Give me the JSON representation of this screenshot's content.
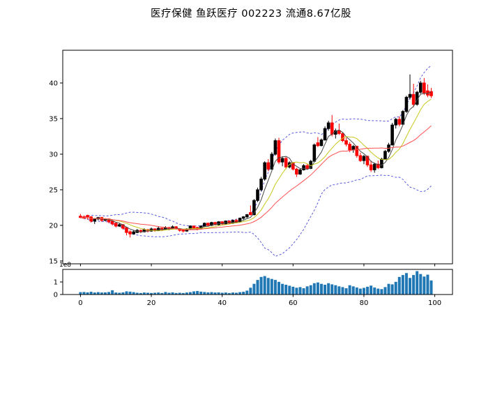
{
  "title": "医疗保健  鱼跃医疗  002223  流通8.67亿股",
  "chart_data": {
    "type": "candlestick",
    "title": "医疗保健  鱼跃医疗  002223  流通8.67亿股",
    "x_range": [
      0,
      99
    ],
    "main_axis": {
      "ylim": [
        14.6,
        44.6
      ],
      "yticks": [
        15,
        20,
        25,
        30,
        35,
        40
      ],
      "xlim": [
        -5,
        105
      ],
      "xticks": [
        0,
        20,
        40,
        60,
        80,
        100
      ],
      "grid": false,
      "legend": "none"
    },
    "volume_axis": {
      "ylim": [
        0,
        2.0
      ],
      "yticks": [
        0,
        1
      ],
      "exponent_label": "1e8",
      "xticks": [
        0,
        20,
        40,
        60,
        80,
        100
      ]
    },
    "candle_colors": {
      "up": "#000000",
      "down": "#ff0000"
    },
    "volume_color": "#1f77b4",
    "overlays": [
      {
        "name": "ma-fast",
        "type": "sma",
        "window": 5,
        "color": "#474747",
        "style": "solid"
      },
      {
        "name": "ma-mid",
        "type": "sma",
        "window": 10,
        "color": "#c8c81e",
        "style": "solid"
      },
      {
        "name": "ma-slow",
        "type": "sma",
        "window": 20,
        "color": "#ff5050",
        "style": "solid"
      },
      {
        "name": "boll-upper",
        "type": "bollinger_upper",
        "window": 20,
        "k": 2,
        "color": "#5a5ae0",
        "style": "dashed"
      },
      {
        "name": "boll-lower",
        "type": "bollinger_lower",
        "window": 20,
        "k": 2,
        "color": "#5a5ae0",
        "style": "dashed"
      }
    ],
    "ohlc": [
      [
        21.3,
        21.6,
        21.0,
        21.1
      ],
      [
        21.2,
        21.4,
        20.9,
        21.0
      ],
      [
        21.4,
        21.5,
        20.8,
        21.2
      ],
      [
        21.2,
        21.3,
        20.4,
        20.6
      ],
      [
        20.6,
        21.0,
        20.2,
        20.9
      ],
      [
        20.9,
        21.2,
        20.7,
        21.1
      ],
      [
        21.1,
        21.2,
        20.5,
        20.7
      ],
      [
        20.7,
        21.0,
        20.6,
        20.9
      ],
      [
        20.9,
        21.0,
        20.3,
        20.5
      ],
      [
        20.6,
        20.7,
        20.0,
        20.2
      ],
      [
        20.3,
        20.4,
        19.7,
        19.9
      ],
      [
        19.9,
        20.3,
        19.8,
        20.1
      ],
      [
        20.1,
        20.2,
        19.4,
        19.6
      ],
      [
        19.7,
        19.8,
        18.6,
        19.0
      ],
      [
        19.1,
        19.3,
        18.3,
        18.8
      ],
      [
        18.8,
        19.3,
        18.7,
        19.1
      ],
      [
        19.0,
        19.5,
        18.9,
        19.3
      ],
      [
        19.3,
        19.4,
        18.9,
        19.1
      ],
      [
        19.1,
        19.6,
        19.0,
        19.4
      ],
      [
        19.4,
        19.5,
        19.0,
        19.2
      ],
      [
        19.2,
        19.7,
        19.1,
        19.5
      ],
      [
        19.5,
        19.6,
        19.1,
        19.3
      ],
      [
        19.3,
        19.9,
        19.2,
        19.6
      ],
      [
        19.6,
        19.7,
        19.2,
        19.4
      ],
      [
        19.4,
        19.9,
        19.3,
        19.7
      ],
      [
        19.7,
        19.8,
        19.3,
        19.5
      ],
      [
        19.5,
        20.0,
        19.4,
        19.8
      ],
      [
        19.8,
        19.9,
        19.4,
        19.5
      ],
      [
        19.5,
        19.6,
        19.1,
        19.3
      ],
      [
        19.4,
        19.5,
        19.0,
        19.2
      ],
      [
        19.2,
        19.6,
        19.1,
        19.5
      ],
      [
        19.5,
        20.0,
        19.4,
        19.9
      ],
      [
        19.9,
        20.0,
        19.5,
        19.6
      ],
      [
        19.7,
        19.8,
        19.3,
        19.5
      ],
      [
        19.5,
        20.0,
        19.4,
        19.9
      ],
      [
        19.9,
        20.4,
        19.8,
        20.3
      ],
      [
        20.3,
        20.4,
        19.9,
        20.0
      ],
      [
        20.0,
        20.5,
        19.9,
        20.4
      ],
      [
        20.4,
        20.5,
        20.0,
        20.1
      ],
      [
        20.1,
        20.6,
        20.0,
        20.5
      ],
      [
        20.5,
        20.6,
        20.1,
        20.2
      ],
      [
        20.2,
        20.7,
        20.1,
        20.6
      ],
      [
        20.6,
        20.7,
        20.2,
        20.3
      ],
      [
        20.3,
        20.8,
        20.2,
        20.7
      ],
      [
        20.7,
        20.9,
        20.3,
        20.4
      ],
      [
        20.5,
        21.1,
        20.4,
        21.0
      ],
      [
        21.0,
        21.3,
        20.8,
        21.2
      ],
      [
        21.2,
        21.6,
        21.0,
        21.5
      ],
      [
        21.8,
        22.8,
        21.4,
        21.5
      ],
      [
        21.5,
        23.7,
        21.4,
        23.5
      ],
      [
        23.5,
        25.3,
        23.3,
        25.0
      ],
      [
        25.0,
        26.8,
        24.8,
        26.5
      ],
      [
        26.5,
        29.0,
        26.3,
        28.8
      ],
      [
        28.8,
        29.3,
        27.6,
        27.9
      ],
      [
        27.9,
        30.3,
        27.8,
        30.0
      ],
      [
        30.0,
        32.2,
        29.8,
        31.9
      ],
      [
        31.9,
        32.3,
        28.6,
        28.9
      ],
      [
        28.9,
        29.7,
        28.3,
        29.4
      ],
      [
        29.4,
        29.6,
        27.9,
        28.2
      ],
      [
        28.2,
        29.0,
        28.0,
        28.8
      ],
      [
        28.8,
        28.9,
        27.7,
        27.9
      ],
      [
        27.9,
        28.1,
        26.8,
        27.2
      ],
      [
        27.2,
        28.0,
        27.1,
        27.8
      ],
      [
        27.8,
        28.6,
        27.7,
        28.4
      ],
      [
        28.4,
        28.6,
        27.8,
        28.0
      ],
      [
        28.0,
        29.2,
        27.9,
        29.0
      ],
      [
        29.0,
        31.5,
        28.9,
        31.3
      ],
      [
        31.6,
        32.4,
        31.0,
        31.2
      ],
      [
        31.2,
        32.2,
        31.1,
        32.0
      ],
      [
        32.0,
        33.9,
        31.9,
        33.6
      ],
      [
        33.6,
        34.7,
        33.3,
        34.4
      ],
      [
        34.4,
        35.5,
        32.5,
        32.8
      ],
      [
        32.8,
        33.6,
        32.2,
        33.3
      ],
      [
        33.3,
        34.3,
        32.7,
        32.9
      ],
      [
        32.9,
        33.1,
        31.7,
        31.9
      ],
      [
        31.9,
        32.3,
        31.1,
        31.4
      ],
      [
        31.4,
        31.7,
        30.3,
        30.6
      ],
      [
        30.6,
        31.3,
        30.2,
        31.1
      ],
      [
        31.1,
        31.2,
        29.5,
        29.8
      ],
      [
        29.8,
        30.2,
        28.9,
        29.1
      ],
      [
        29.1,
        29.9,
        28.6,
        29.7
      ],
      [
        29.7,
        29.8,
        28.2,
        28.5
      ],
      [
        28.5,
        29.1,
        27.5,
        27.8
      ],
      [
        27.8,
        28.8,
        27.4,
        28.6
      ],
      [
        28.6,
        29.1,
        27.9,
        28.1
      ],
      [
        28.1,
        29.5,
        28.0,
        29.3
      ],
      [
        29.3,
        30.6,
        29.2,
        30.4
      ],
      [
        30.4,
        31.6,
        30.2,
        31.3
      ],
      [
        31.3,
        34.4,
        31.2,
        34.1
      ],
      [
        34.1,
        35.1,
        33.6,
        34.9
      ],
      [
        34.9,
        35.3,
        33.9,
        34.2
      ],
      [
        34.2,
        36.2,
        34.1,
        36.0
      ],
      [
        36.0,
        38.2,
        35.8,
        38.0
      ],
      [
        38.0,
        41.2,
        37.7,
        38.4
      ],
      [
        38.4,
        39.9,
        36.6,
        37.0
      ],
      [
        37.0,
        38.9,
        36.8,
        38.7
      ],
      [
        38.7,
        40.3,
        38.5,
        40.0
      ],
      [
        40.0,
        40.7,
        38.3,
        38.6
      ],
      [
        38.9,
        39.8,
        38.0,
        38.3
      ],
      [
        38.8,
        39.3,
        37.9,
        38.2
      ]
    ],
    "volume": [
      0.19,
      0.2,
      0.17,
      0.22,
      0.16,
      0.19,
      0.16,
      0.17,
      0.2,
      0.34,
      0.16,
      0.14,
      0.17,
      0.25,
      0.23,
      0.19,
      0.14,
      0.12,
      0.16,
      0.14,
      0.12,
      0.14,
      0.16,
      0.12,
      0.2,
      0.14,
      0.17,
      0.12,
      0.14,
      0.12,
      0.16,
      0.19,
      0.25,
      0.28,
      0.23,
      0.2,
      0.17,
      0.19,
      0.16,
      0.17,
      0.14,
      0.16,
      0.12,
      0.16,
      0.14,
      0.19,
      0.22,
      0.31,
      0.54,
      0.85,
      1.16,
      1.4,
      1.47,
      1.32,
      1.24,
      1.16,
      1.01,
      0.85,
      0.78,
      0.7,
      0.62,
      0.54,
      0.59,
      0.5,
      0.65,
      0.74,
      0.9,
      0.96,
      0.85,
      0.78,
      0.9,
      0.81,
      0.74,
      0.65,
      0.59,
      0.5,
      0.74,
      0.65,
      0.56,
      0.47,
      0.53,
      0.62,
      0.71,
      0.56,
      0.47,
      0.43,
      0.59,
      0.85,
      0.81,
      1.01,
      1.4,
      1.55,
      1.71,
      1.32,
      1.55,
      1.86,
      1.63,
      1.43,
      1.58,
      1.12
    ]
  }
}
